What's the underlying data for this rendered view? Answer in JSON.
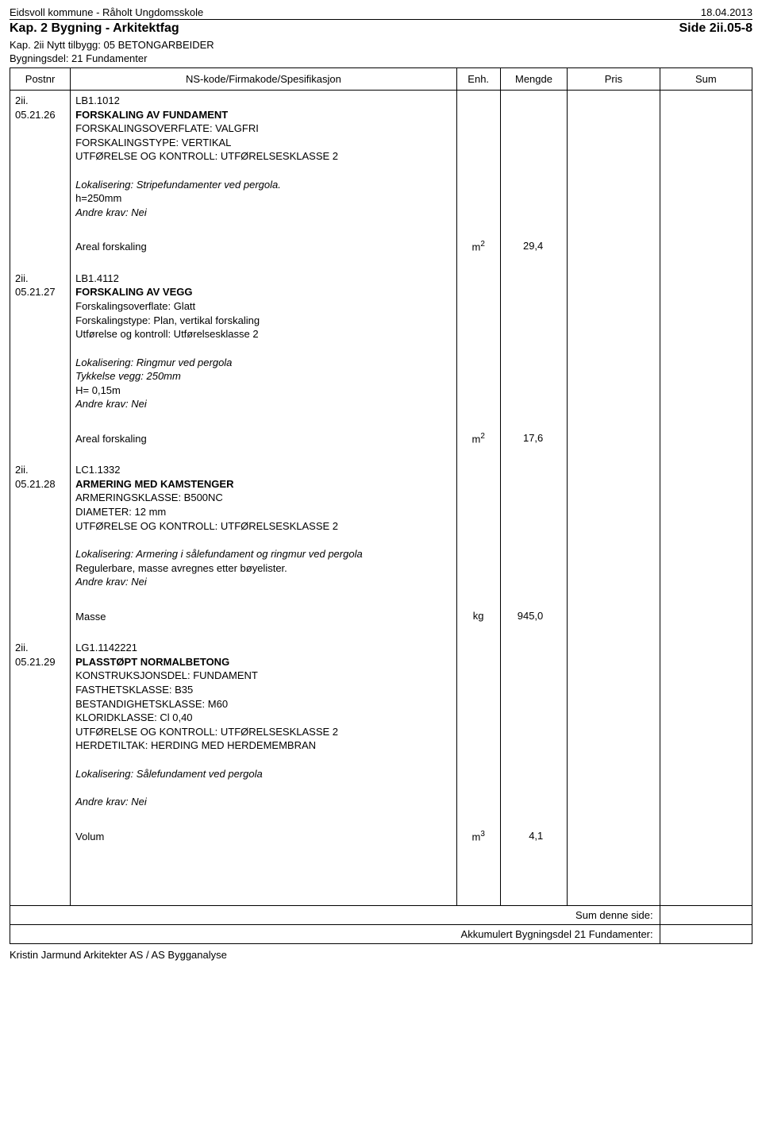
{
  "header": {
    "left": "Eidsvoll kommune - Råholt Ungdomsskole",
    "right": "18.04.2013"
  },
  "kapline": {
    "left": "Kap. 2 Bygning - Arkitektfag",
    "right": "Side 2ii.05-8"
  },
  "subkap": "Kap. 2ii Nytt tilbygg: 05 BETONGARBEIDER",
  "bygdel": "Bygningsdel: 21 Fundamenter",
  "thead": {
    "postnr": "Postnr",
    "spec": "NS-kode/Firmakode/Spesifikasjon",
    "enh": "Enh.",
    "mengde": "Mengde",
    "pris": "Pris",
    "sum": "Sum"
  },
  "items": [
    {
      "postnr_a": "2ii.",
      "postnr_b": "05.21.26",
      "code": "LB1.1012",
      "title": "FORSKALING AV FUNDAMENT",
      "body": [
        "FORSKALINGSOVERFLATE: VALGFRI",
        "FORSKALINGSTYPE: VERTIKAL",
        "UTFØRELSE OG KONTROLL: UTFØRELSESKLASSE 2"
      ],
      "mid_italic": [
        "Lokalisering: Stripefundamenter ved pergola."
      ],
      "mid_plain": [
        "h=250mm"
      ],
      "mid_italic2": [
        "Andre krav: Nei"
      ],
      "measure_label": "Areal forskaling",
      "enh_html": "m<span class='sup'>2</span>",
      "mengde": "29,4"
    },
    {
      "postnr_a": "2ii.",
      "postnr_b": "05.21.27",
      "code": "LB1.4112",
      "title": "FORSKALING AV VEGG",
      "body": [
        "Forskalingsoverflate: Glatt",
        "Forskalingstype: Plan, vertikal forskaling",
        "Utførelse og kontroll: Utførelsesklasse 2"
      ],
      "mid_italic": [
        "Lokalisering: Ringmur ved pergola",
        "Tykkelse vegg: 250mm"
      ],
      "mid_plain": [
        "H= 0,15m"
      ],
      "mid_italic2": [
        "Andre krav: Nei"
      ],
      "measure_label": "Areal forskaling",
      "enh_html": "m<span class='sup'>2</span>",
      "mengde": "17,6"
    },
    {
      "postnr_a": "2ii.",
      "postnr_b": "05.21.28",
      "code": "LC1.1332",
      "title": "ARMERING MED KAMSTENGER",
      "body": [
        "ARMERINGSKLASSE: B500NC",
        "DIAMETER: 12 mm",
        "UTFØRELSE OG KONTROLL: UTFØRELSESKLASSE 2"
      ],
      "mid_italic": [
        "Lokalisering: Armering i sålefundament og ringmur ved pergola"
      ],
      "mid_plain": [
        "Regulerbare, masse avregnes etter bøyelister."
      ],
      "mid_italic2": [
        "Andre krav: Nei"
      ],
      "measure_label": "Masse",
      "enh_html": "kg",
      "mengde": "945,0"
    },
    {
      "postnr_a": "2ii.",
      "postnr_b": "05.21.29",
      "code": "LG1.1142221",
      "title": "PLASSTØPT NORMALBETONG",
      "body": [
        "KONSTRUKSJONSDEL: FUNDAMENT",
        "FASTHETSKLASSE: B35",
        "BESTANDIGHETSKLASSE: M60",
        "KLORIDKLASSE: Cl 0,40",
        "UTFØRELSE OG KONTROLL: UTFØRELSESKLASSE 2",
        "HERDETILTAK: HERDING MED HERDEMEMBRAN"
      ],
      "mid_italic": [
        "Lokalisering: Sålefundament ved pergola"
      ],
      "mid_plain": [],
      "mid_italic2": [
        "Andre krav: Nei"
      ],
      "mid_gap_before2": true,
      "measure_label": "Volum",
      "enh_html": "m<span class='sup'>3</span>",
      "mengde": "4,1"
    }
  ],
  "foot": {
    "sumside": "Sum denne side:",
    "akk": "Akkumulert Bygningsdel 21 Fundamenter:"
  },
  "footer": "Kristin Jarmund Arkitekter AS / AS Bygganalyse"
}
